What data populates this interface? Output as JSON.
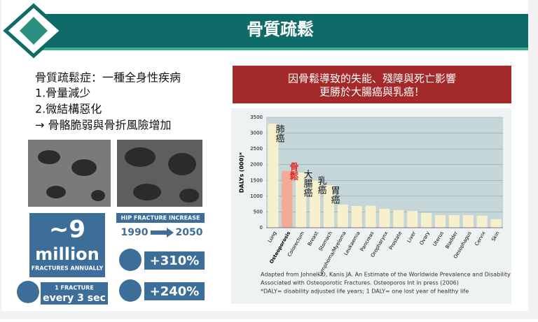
{
  "slide": {
    "title": "骨質疏鬆",
    "left_text": [
      "骨質疏鬆症：一種全身性疾病",
      "1.骨量減少",
      "2.微結構惡化",
      "→ 骨骼脆弱與骨折風險增加"
    ],
    "info": {
      "count": "~9",
      "unit": "million",
      "unit_sub": "FRACTURES ANNUALLY",
      "hip_title": "HIP FRACTURE INCREASE",
      "from_year": "1990",
      "to_year": "2050",
      "men": "+310%",
      "women": "+240%",
      "rate_top": "1 FRACTURE",
      "rate_bottom": "every 3 sec"
    },
    "banner": [
      "因骨鬆導致的失能、殘障與死亡影響",
      "更勝於大腸癌與乳癌！"
    ],
    "notes": [
      "Adapted from Johnell O, Kanis JA. An Estimate of the Worldwide Prevalence and Disability",
      "Associated with Osteoporotic Fractures. Osteoporos Int in press (2006)",
      "*DALY= disability adjusted life years; 1 DALY= one lost year of healthy life"
    ]
  },
  "chart_data": {
    "type": "bar",
    "ylabel": "DALYs (000)*",
    "categories": [
      "Lung",
      "Osteoporosis",
      "Colorectum",
      "Breast",
      "Stomach",
      "Lymphoma/Myeloma",
      "Leukaemia",
      "Pancreas",
      "Oropharynx",
      "Prostate",
      "Liver",
      "Ovary",
      "Uterus",
      "Bladder",
      "Oesophagus",
      "Cervix",
      "Skin"
    ],
    "values": [
      3300,
      1800,
      1750,
      1500,
      1350,
      730,
      690,
      700,
      600,
      560,
      530,
      470,
      400,
      400,
      400,
      380,
      270
    ],
    "colors": [
      "#f6f0cc",
      "#f3ab95",
      "#f6f0cc",
      "#f6f0cc",
      "#f6f0cc",
      "#f6f0cc",
      "#f6f0cc",
      "#f6f0cc",
      "#f6f0cc",
      "#f6f0cc",
      "#f6f0cc",
      "#f6f0cc",
      "#f6f0cc",
      "#f6f0cc",
      "#f6f0cc",
      "#f6f0cc",
      "#f6f0cc"
    ],
    "ylim": [
      0,
      3500
    ],
    "yticks": [
      0,
      500,
      1000,
      1500,
      2000,
      2500,
      3000,
      3500
    ],
    "grid": true,
    "annotations": [
      "肺癌",
      "骨鬆",
      "大腸癌",
      "乳癌",
      "胃癌"
    ]
  }
}
